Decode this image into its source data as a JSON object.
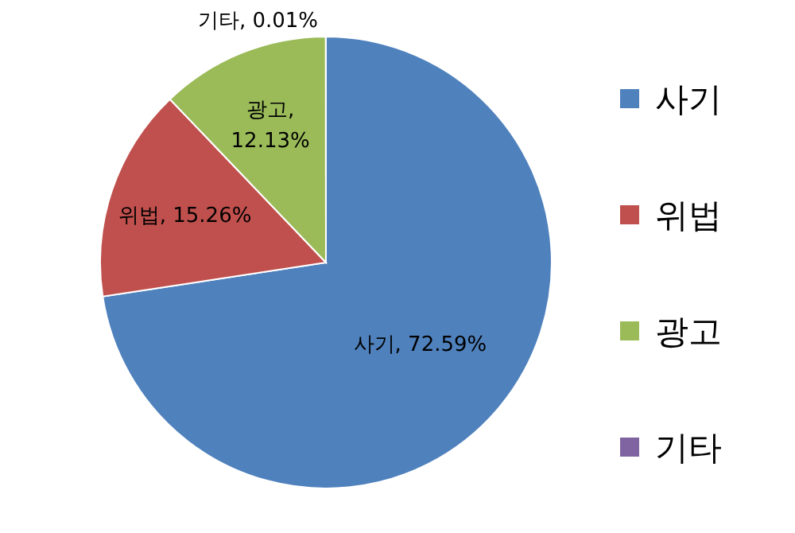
{
  "chart_data": {
    "type": "pie",
    "categories": [
      "사기",
      "위법",
      "광고",
      "기타"
    ],
    "values": [
      72.59,
      15.26,
      12.13,
      0.01
    ],
    "colors": [
      "#4f81bd",
      "#c0504d",
      "#9bbb59",
      "#8064a2"
    ],
    "value_labels": [
      "사기, 72.59%",
      "위법, 15.26%",
      "광고, 12.13%",
      "기타, 0.01%"
    ],
    "legend": "right"
  }
}
